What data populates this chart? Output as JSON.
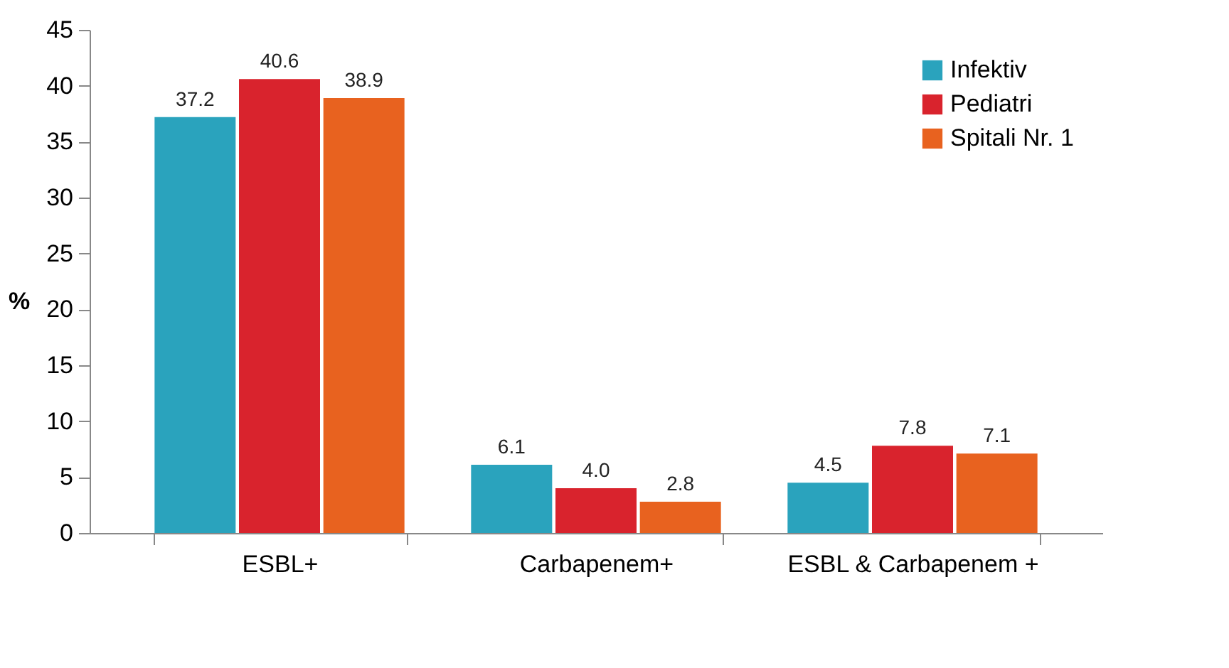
{
  "chart_data": {
    "type": "bar",
    "ylabel": "%",
    "categories": [
      "ESBL+",
      "Carbapenem+",
      "ESBL & Carbapenem +"
    ],
    "series": [
      {
        "name": "Infektiv",
        "color": "#2aa3bd",
        "values": [
          37.2,
          6.1,
          4.5
        ],
        "value_labels": [
          "37.2",
          "6.1",
          "4.5"
        ]
      },
      {
        "name": "Pediatri",
        "color": "#d9232d",
        "values": [
          40.6,
          4.0,
          7.8
        ],
        "value_labels": [
          "40.6",
          "4.0",
          "7.8"
        ]
      },
      {
        "name": "Spitali Nr. 1",
        "color": "#e8621f",
        "values": [
          38.9,
          2.8,
          7.1
        ],
        "value_labels": [
          "38.9",
          "2.8",
          "7.1"
        ]
      }
    ],
    "ylim": [
      0,
      45
    ],
    "yticks": [
      0,
      5,
      10,
      15,
      20,
      25,
      30,
      35,
      40,
      45
    ],
    "grid": false,
    "legend": "top right"
  }
}
